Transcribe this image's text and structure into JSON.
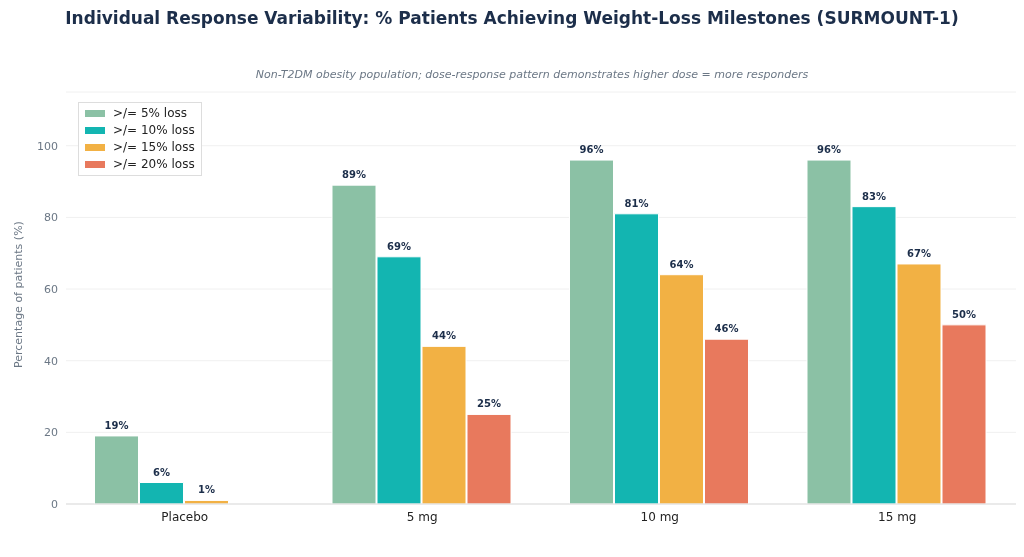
{
  "chart_data": {
    "type": "bar",
    "title": "Individual Response Variability: % Patients Achieving Weight-Loss Milestones (SURMOUNT-1)",
    "subtitle": "Non-T2DM obesity population; dose-response pattern demonstrates higher dose = more responders",
    "ylabel": "Percentage of patients (%)",
    "categories": [
      "Placebo",
      "5 mg",
      "10 mg",
      "15 mg"
    ],
    "series": [
      {
        "name": ">/= 5% loss",
        "color": "#8bc1a5",
        "values": [
          19,
          89,
          96,
          96
        ],
        "value_labels": [
          "19%",
          "89%",
          "96%",
          "96%"
        ]
      },
      {
        "name": ">/= 10% loss",
        "color": "#13b5b1",
        "values": [
          6,
          69,
          81,
          83
        ],
        "value_labels": [
          "6%",
          "69%",
          "81%",
          "83%"
        ]
      },
      {
        "name": ">/= 15% loss",
        "color": "#f2b144",
        "values": [
          1,
          44,
          64,
          67
        ],
        "value_labels": [
          "1%",
          "44%",
          "64%",
          "67%"
        ]
      },
      {
        "name": ">/= 20% loss",
        "color": "#e8795d",
        "values": [
          null,
          25,
          46,
          50
        ],
        "value_labels": [
          null,
          "25%",
          "46%",
          "50%"
        ]
      }
    ],
    "ylim": [
      0,
      115
    ],
    "yticks": [
      0,
      20,
      40,
      60,
      80,
      100
    ],
    "grid": "y",
    "legend": "top left"
  }
}
